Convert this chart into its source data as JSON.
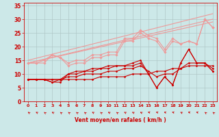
{
  "background_color": "#cce8e8",
  "grid_color": "#b0c8c8",
  "xlabel": "Vent moyen/en rafales ( km/h )",
  "xlabel_color": "#cc0000",
  "tick_color": "#cc0000",
  "arrow_color": "#cc0000",
  "x_ticks": [
    0,
    1,
    2,
    3,
    4,
    5,
    6,
    7,
    8,
    9,
    10,
    11,
    12,
    13,
    14,
    15,
    16,
    17,
    18,
    19,
    20,
    21,
    22,
    23
  ],
  "ylim": [
    0,
    36
  ],
  "xlim": [
    -0.5,
    23.5
  ],
  "yticks": [
    0,
    5,
    10,
    15,
    20,
    25,
    30,
    35
  ],
  "lines": [
    {
      "x": [
        0,
        1,
        2,
        3,
        4,
        5,
        6,
        7,
        8,
        9,
        10,
        11,
        12,
        13,
        14,
        15,
        16,
        17,
        18,
        19,
        20,
        21,
        22,
        23
      ],
      "y": [
        8,
        8,
        8,
        8,
        8,
        8,
        8,
        8,
        8,
        9,
        9,
        9,
        9,
        10,
        10,
        10,
        11,
        11,
        12,
        12,
        13,
        13,
        13,
        13
      ],
      "color": "#cc0000",
      "lw": 0.8,
      "marker": "D",
      "ms": 1.5
    },
    {
      "x": [
        0,
        1,
        2,
        3,
        4,
        5,
        6,
        7,
        8,
        9,
        10,
        11,
        12,
        13,
        14,
        15,
        16,
        17,
        18,
        19,
        20,
        21,
        22,
        23
      ],
      "y": [
        8,
        8,
        8,
        8,
        8,
        9,
        9,
        10,
        10,
        10,
        11,
        11,
        12,
        12,
        13,
        11,
        9,
        10,
        10,
        12,
        14,
        14,
        14,
        12
      ],
      "color": "#cc0000",
      "lw": 0.8,
      "marker": "D",
      "ms": 1.5
    },
    {
      "x": [
        0,
        1,
        2,
        3,
        4,
        5,
        6,
        7,
        8,
        9,
        10,
        11,
        12,
        13,
        14,
        15,
        16,
        17,
        18,
        19,
        20,
        21,
        22,
        23
      ],
      "y": [
        8,
        8,
        8,
        7,
        7,
        10,
        10,
        11,
        11,
        12,
        12,
        13,
        13,
        13,
        14,
        10,
        5,
        9,
        6,
        14,
        19,
        14,
        14,
        11
      ],
      "color": "#cc0000",
      "lw": 0.8,
      "marker": "D",
      "ms": 1.5
    },
    {
      "x": [
        0,
        1,
        2,
        3,
        4,
        5,
        6,
        7,
        8,
        9,
        10,
        11,
        12,
        13,
        14,
        15,
        16,
        17,
        18,
        19,
        20,
        21,
        22,
        23
      ],
      "y": [
        8,
        8,
        8,
        7,
        8,
        10,
        11,
        11,
        12,
        12,
        13,
        13,
        13,
        14,
        15,
        10,
        5,
        9,
        6,
        14,
        19,
        14,
        14,
        11
      ],
      "color": "#cc0000",
      "lw": 0.8,
      "marker": "D",
      "ms": 1.5
    },
    {
      "x": [
        0,
        1,
        2,
        3,
        4,
        5,
        6,
        7,
        8,
        9,
        10,
        11,
        12,
        13,
        14,
        15,
        16,
        17,
        18,
        19,
        20,
        21,
        22,
        23
      ],
      "y": [
        14,
        14,
        14,
        17,
        16,
        13,
        14,
        14,
        16,
        16,
        17,
        17,
        22,
        22,
        25,
        23,
        22,
        18,
        22,
        21,
        22,
        21,
        30,
        27
      ],
      "color": "#ee9999",
      "lw": 0.8,
      "marker": "D",
      "ms": 1.8
    },
    {
      "x": [
        0,
        1,
        2,
        3,
        4,
        5,
        6,
        7,
        8,
        9,
        10,
        11,
        12,
        13,
        14,
        15,
        16,
        17,
        18,
        19,
        20,
        21,
        22,
        23
      ],
      "y": [
        14,
        14,
        15,
        17,
        16,
        14,
        15,
        15,
        17,
        17,
        18,
        18,
        23,
        23,
        26,
        24,
        23,
        19,
        23,
        21,
        22,
        21,
        30,
        27
      ],
      "color": "#ee9999",
      "lw": 0.8,
      "marker": "D",
      "ms": 1.8
    },
    {
      "x": [
        0,
        23
      ],
      "y": [
        14,
        29
      ],
      "color": "#ee9999",
      "lw": 0.8,
      "marker": null,
      "ms": 0
    },
    {
      "x": [
        0,
        23
      ],
      "y": [
        14,
        30
      ],
      "color": "#ee9999",
      "lw": 0.8,
      "marker": null,
      "ms": 0
    },
    {
      "x": [
        0,
        23
      ],
      "y": [
        15,
        32
      ],
      "color": "#ee9999",
      "lw": 0.8,
      "marker": null,
      "ms": 0
    }
  ],
  "wind_arrows_x": [
    0,
    1,
    2,
    3,
    4,
    5,
    6,
    7,
    8,
    9,
    10,
    11,
    12,
    13,
    14,
    15,
    16,
    17,
    18,
    19,
    20,
    21,
    22,
    23
  ],
  "wind_angles": [
    220,
    225,
    215,
    225,
    215,
    215,
    215,
    215,
    225,
    215,
    225,
    215,
    225,
    225,
    225,
    250,
    245,
    245,
    245,
    225,
    250,
    245,
    215,
    215
  ]
}
